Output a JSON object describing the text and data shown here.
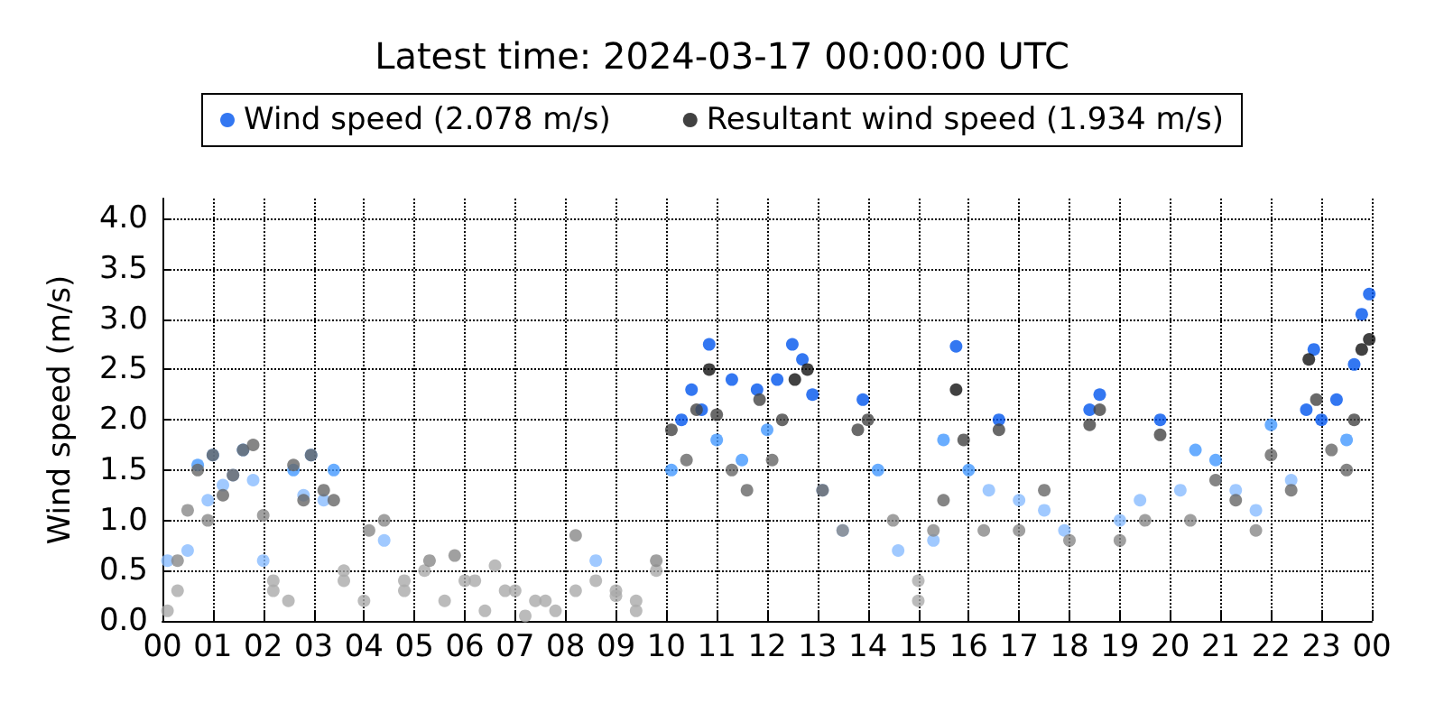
{
  "chart_data": {
    "type": "scatter",
    "title": "Latest time: 2024-03-17 00:00:00 UTC",
    "ylabel": "Wind speed (m/s)",
    "legend": "top",
    "grid": true,
    "marker": "circle",
    "xlim": [
      0,
      24
    ],
    "xticks": [
      {
        "value": 0,
        "label": "00"
      },
      {
        "value": 1,
        "label": "01"
      },
      {
        "value": 2,
        "label": "02"
      },
      {
        "value": 3,
        "label": "03"
      },
      {
        "value": 4,
        "label": "04"
      },
      {
        "value": 5,
        "label": "05"
      },
      {
        "value": 6,
        "label": "06"
      },
      {
        "value": 7,
        "label": "07"
      },
      {
        "value": 8,
        "label": "08"
      },
      {
        "value": 9,
        "label": "09"
      },
      {
        "value": 10,
        "label": "10"
      },
      {
        "value": 11,
        "label": "11"
      },
      {
        "value": 12,
        "label": "12"
      },
      {
        "value": 13,
        "label": "13"
      },
      {
        "value": 14,
        "label": "14"
      },
      {
        "value": 15,
        "label": "15"
      },
      {
        "value": 16,
        "label": "16"
      },
      {
        "value": 17,
        "label": "17"
      },
      {
        "value": 18,
        "label": "18"
      },
      {
        "value": 19,
        "label": "19"
      },
      {
        "value": 20,
        "label": "20"
      },
      {
        "value": 21,
        "label": "21"
      },
      {
        "value": 22,
        "label": "22"
      },
      {
        "value": 23,
        "label": "23"
      },
      {
        "value": 24,
        "label": "00"
      }
    ],
    "ylim": [
      0,
      4.2
    ],
    "yticks": [
      {
        "value": 0,
        "label": "0.0"
      },
      0.5,
      {
        "value": 1,
        "label": "1.0"
      },
      1.5,
      {
        "value": 2,
        "label": "2.0"
      },
      2.5,
      {
        "value": 3,
        "label": "3.0"
      },
      3.5,
      {
        "value": 4,
        "label": "4.0"
      }
    ],
    "series": [
      {
        "name": "Wind speed (2.078 m/s)",
        "color": "#0055ee",
        "x": [
          0.1,
          0.3,
          0.5,
          0.7,
          0.9,
          1.0,
          1.2,
          1.4,
          1.6,
          1.8,
          2.0,
          2.2,
          2.5,
          2.6,
          2.8,
          2.95,
          3.2,
          3.4,
          3.6,
          4.0,
          4.4,
          4.8,
          5.2,
          5.6,
          6.0,
          6.4,
          6.8,
          7.2,
          7.6,
          8.2,
          8.6,
          9.0,
          9.4,
          9.8,
          10.1,
          10.3,
          10.5,
          10.7,
          10.85,
          11.0,
          11.3,
          11.5,
          11.8,
          12.0,
          12.2,
          12.5,
          12.7,
          12.9,
          13.1,
          13.5,
          13.9,
          14.2,
          14.6,
          15.0,
          15.3,
          15.5,
          15.75,
          16.0,
          16.4,
          16.6,
          17.0,
          17.5,
          17.9,
          18.4,
          18.6,
          19.0,
          19.4,
          19.8,
          20.2,
          20.5,
          20.9,
          21.3,
          21.7,
          22.0,
          22.4,
          22.7,
          22.85,
          23.0,
          23.3,
          23.5,
          23.65,
          23.8,
          23.95
        ],
        "values": [
          0.6,
          0.3,
          0.7,
          1.55,
          1.2,
          1.65,
          1.35,
          1.45,
          1.7,
          1.4,
          0.6,
          0.3,
          0.2,
          1.5,
          1.25,
          1.65,
          1.2,
          1.5,
          0.5,
          0.2,
          0.8,
          0.3,
          0.5,
          0.2,
          0.4,
          0.1,
          0.3,
          0.05,
          0.2,
          0.3,
          0.6,
          0.25,
          0.1,
          0.5,
          1.5,
          2.0,
          2.3,
          2.1,
          2.75,
          1.8,
          2.4,
          1.6,
          2.3,
          1.9,
          2.4,
          2.75,
          2.6,
          2.25,
          1.3,
          0.9,
          2.2,
          1.5,
          0.7,
          0.2,
          0.8,
          1.8,
          2.73,
          1.5,
          1.3,
          2.0,
          1.2,
          1.1,
          0.9,
          2.1,
          2.25,
          1.0,
          1.2,
          2.0,
          1.3,
          1.7,
          1.6,
          1.3,
          1.1,
          1.95,
          1.4,
          2.1,
          2.7,
          2.0,
          2.2,
          1.8,
          2.55,
          3.05,
          3.25
        ],
        "colors": [
          "#88bbff",
          "#aaaaaa",
          "#88bbff",
          "#4499ff",
          "#88bbff",
          "#4499ff",
          "#88bbff",
          "#88bbff",
          "#4499ff",
          "#88bbff",
          "#88bbff",
          "#aaaaaa",
          "#aaaaaa",
          "#4499ff",
          "#88bbff",
          "#4499ff",
          "#88bbff",
          "#4499ff",
          "#aaaaaa",
          "#aaaaaa",
          "#88bbff",
          "#aaaaaa",
          "#aaaaaa",
          "#aaaaaa",
          "#aaaaaa",
          "#aaaaaa",
          "#aaaaaa",
          "#aaaaaa",
          "#aaaaaa",
          "#aaaaaa",
          "#88bbff",
          "#aaaaaa",
          "#aaaaaa",
          "#aaaaaa",
          "#4499ff",
          "#0055ee",
          "#0055ee",
          "#0055ee",
          "#0055ee",
          "#4499ff",
          "#0055ee",
          "#4499ff",
          "#0055ee",
          "#4499ff",
          "#0055ee",
          "#0055ee",
          "#0055ee",
          "#0055ee",
          "#88bbff",
          "#88bbff",
          "#0055ee",
          "#4499ff",
          "#88bbff",
          "#aaaaaa",
          "#88bbff",
          "#4499ff",
          "#0055ee",
          "#4499ff",
          "#88bbff",
          "#0055ee",
          "#88bbff",
          "#88bbff",
          "#88bbff",
          "#0055ee",
          "#0055ee",
          "#88bbff",
          "#88bbff",
          "#0055ee",
          "#88bbff",
          "#4499ff",
          "#4499ff",
          "#88bbff",
          "#88bbff",
          "#4499ff",
          "#88bbff",
          "#0055ee",
          "#0055ee",
          "#0055ee",
          "#0055ee",
          "#4499ff",
          "#0055ee",
          "#0055ee",
          "#0055ee"
        ]
      },
      {
        "name": "Resultant wind speed (1.934 m/s)",
        "color": "#111111",
        "x": [
          0.1,
          0.3,
          0.5,
          0.7,
          0.9,
          1.0,
          1.2,
          1.4,
          1.6,
          1.8,
          2.0,
          2.2,
          2.6,
          2.8,
          2.95,
          3.2,
          3.4,
          3.6,
          4.1,
          4.4,
          4.8,
          5.3,
          5.8,
          6.2,
          6.6,
          7.0,
          7.4,
          7.8,
          8.2,
          8.6,
          9.0,
          9.4,
          9.8,
          10.1,
          10.4,
          10.6,
          10.85,
          11.0,
          11.3,
          11.6,
          11.85,
          12.1,
          12.3,
          12.55,
          12.8,
          13.1,
          13.5,
          13.8,
          14.0,
          14.5,
          15.0,
          15.3,
          15.5,
          15.75,
          15.9,
          16.3,
          16.6,
          17.0,
          17.5,
          18.0,
          18.4,
          18.6,
          19.0,
          19.5,
          19.8,
          20.4,
          20.9,
          21.3,
          21.7,
          22.0,
          22.4,
          22.75,
          22.9,
          23.2,
          23.5,
          23.65,
          23.8,
          23.95
        ],
        "values": [
          0.1,
          0.6,
          1.1,
          1.5,
          1.0,
          1.65,
          1.25,
          1.45,
          1.7,
          1.75,
          1.05,
          0.4,
          1.55,
          1.2,
          1.65,
          1.3,
          1.2,
          0.4,
          0.9,
          1.0,
          0.4,
          0.6,
          0.65,
          0.4,
          0.55,
          0.3,
          0.2,
          0.1,
          0.85,
          0.4,
          0.3,
          0.2,
          0.6,
          1.9,
          1.6,
          2.1,
          2.5,
          2.05,
          1.5,
          1.3,
          2.2,
          1.6,
          2.0,
          2.4,
          2.5,
          1.3,
          0.9,
          1.9,
          2.0,
          1.0,
          0.4,
          0.9,
          1.2,
          2.3,
          1.8,
          0.9,
          1.9,
          0.9,
          1.3,
          0.8,
          1.95,
          2.1,
          0.8,
          1.0,
          1.85,
          1.0,
          1.4,
          1.2,
          0.9,
          1.65,
          1.3,
          2.6,
          2.2,
          1.7,
          1.5,
          2.0,
          2.7,
          2.8
        ],
        "colors": [
          "#aaaaaa",
          "#888888",
          "#888888",
          "#666666",
          "#888888",
          "#666666",
          "#666666",
          "#666666",
          "#666666",
          "#666666",
          "#888888",
          "#aaaaaa",
          "#666666",
          "#666666",
          "#666666",
          "#666666",
          "#666666",
          "#aaaaaa",
          "#888888",
          "#888888",
          "#aaaaaa",
          "#888888",
          "#888888",
          "#aaaaaa",
          "#aaaaaa",
          "#aaaaaa",
          "#aaaaaa",
          "#aaaaaa",
          "#888888",
          "#aaaaaa",
          "#aaaaaa",
          "#aaaaaa",
          "#888888",
          "#444444",
          "#666666",
          "#444444",
          "#111111",
          "#444444",
          "#666666",
          "#666666",
          "#444444",
          "#666666",
          "#444444",
          "#111111",
          "#111111",
          "#666666",
          "#888888",
          "#444444",
          "#444444",
          "#888888",
          "#aaaaaa",
          "#888888",
          "#666666",
          "#111111",
          "#444444",
          "#888888",
          "#444444",
          "#888888",
          "#666666",
          "#888888",
          "#444444",
          "#444444",
          "#888888",
          "#888888",
          "#444444",
          "#888888",
          "#666666",
          "#666666",
          "#888888",
          "#666666",
          "#666666",
          "#111111",
          "#444444",
          "#666666",
          "#666666",
          "#444444",
          "#111111",
          "#111111"
        ]
      }
    ]
  }
}
